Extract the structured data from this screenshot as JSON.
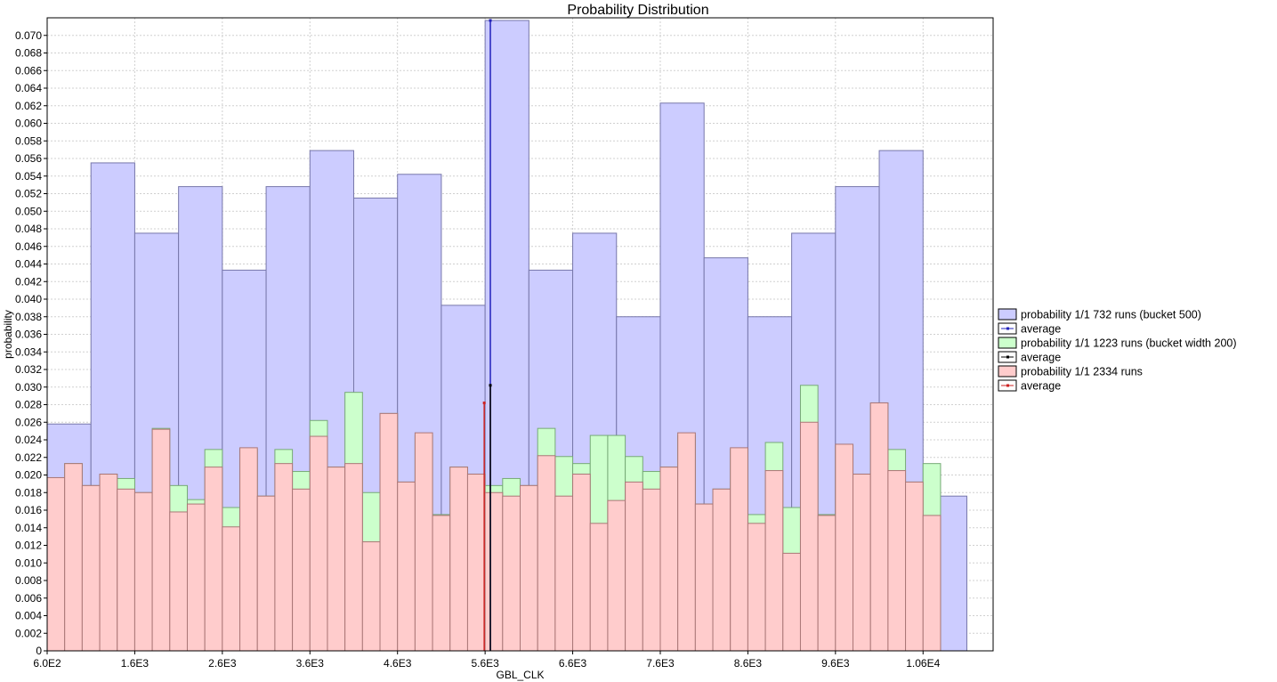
{
  "chart_data": {
    "type": "bar",
    "title": "Probability Distribution",
    "xlabel": "GBL_CLK",
    "ylabel": "probability",
    "xlim": [
      600,
      11400
    ],
    "ylim": [
      0,
      0.072
    ],
    "x_ticks": [
      600,
      1600,
      2600,
      3600,
      4600,
      5600,
      6600,
      7600,
      8600,
      9600,
      10600
    ],
    "x_tick_labels": [
      "6.0E2",
      "1.6E3",
      "2.6E3",
      "3.6E3",
      "4.6E3",
      "5.6E3",
      "6.6E3",
      "7.6E3",
      "8.6E3",
      "9.6E3",
      "1.06E4"
    ],
    "y_ticks": [
      0,
      0.002,
      0.004,
      0.006,
      0.008,
      0.01,
      0.012,
      0.014,
      0.016,
      0.018,
      0.02,
      0.022,
      0.024,
      0.026,
      0.028,
      0.03,
      0.032,
      0.034,
      0.036,
      0.038,
      0.04,
      0.042,
      0.044,
      0.046,
      0.048,
      0.05,
      0.052,
      0.054,
      0.056,
      0.058,
      0.06,
      0.062,
      0.064,
      0.066,
      0.068,
      0.07
    ],
    "y_tick_labels": [
      "0",
      "0.002",
      "0.004",
      "0.006",
      "0.008",
      "0.010",
      "0.012",
      "0.014",
      "0.016",
      "0.018",
      "0.020",
      "0.022",
      "0.024",
      "0.026",
      "0.028",
      "0.030",
      "0.032",
      "0.034",
      "0.036",
      "0.038",
      "0.040",
      "0.042",
      "0.044",
      "0.046",
      "0.048",
      "0.050",
      "0.052",
      "0.054",
      "0.056",
      "0.058",
      "0.060",
      "0.062",
      "0.064",
      "0.066",
      "0.068",
      "0.070"
    ],
    "grid": true,
    "legend_position": "right",
    "series": [
      {
        "name": "probability 1/1 732 runs (bucket 500)",
        "color": "#ccccff",
        "edge": "#7777aa",
        "x_start": 600,
        "bucket_width": 500,
        "values": [
          0.0258,
          0.0555,
          0.0475,
          0.0528,
          0.0433,
          0.0528,
          0.0569,
          0.0515,
          0.0542,
          0.0393,
          0.0717,
          0.0433,
          0.0475,
          0.038,
          0.0623,
          0.0447,
          0.038,
          0.0475,
          0.0528,
          0.0569,
          0.0176
        ],
        "average": 5660,
        "average_name": "average",
        "average_color": "#2222bb"
      },
      {
        "name": "probability 1/1 1223 runs (bucket width 200)",
        "color": "#ccffcc",
        "edge": "#77aa77",
        "x_start": 600,
        "bucket_width": 200,
        "values": [
          0.0196,
          0.0213,
          0.0188,
          0.0201,
          0.0196,
          0.018,
          0.0253,
          0.0188,
          0.0172,
          0.0229,
          0.0163,
          0.0229,
          0.0176,
          0.0229,
          0.0204,
          0.0262,
          0.0209,
          0.0294,
          0.018,
          0.027,
          0.0192,
          0.0245,
          0.0155,
          0.0209,
          0.0201,
          0.0188,
          0.0196,
          0.0188,
          0.0253,
          0.0221,
          0.0213,
          0.0245,
          0.0245,
          0.0221,
          0.0204,
          0.0209,
          0.0245,
          0.0167,
          0.0184,
          0.0229,
          0.0155,
          0.0237,
          0.0163,
          0.0302,
          0.0155,
          0.0233,
          0.0201,
          0.0282,
          0.0229,
          0.0192,
          0.0213
        ],
        "average": 5660,
        "average_name": "average",
        "average_color": "#000000"
      },
      {
        "name": "probability 1/1 2334 runs",
        "color": "#ffcccc",
        "edge": "#aa7777",
        "x_start": 600,
        "bucket_width": 200,
        "values": [
          0.0197,
          0.0213,
          0.0188,
          0.0201,
          0.0184,
          0.018,
          0.0252,
          0.0158,
          0.0167,
          0.0209,
          0.0141,
          0.0231,
          0.0176,
          0.0213,
          0.0184,
          0.0244,
          0.0209,
          0.0213,
          0.0124,
          0.027,
          0.0192,
          0.0248,
          0.0154,
          0.0209,
          0.0201,
          0.018,
          0.0176,
          0.0188,
          0.0222,
          0.0176,
          0.0201,
          0.0145,
          0.0171,
          0.0192,
          0.0184,
          0.0209,
          0.0248,
          0.0167,
          0.0184,
          0.0231,
          0.0145,
          0.0205,
          0.0111,
          0.026,
          0.0154,
          0.0235,
          0.0201,
          0.0282,
          0.0205,
          0.0192,
          0.0154
        ],
        "average": 5590,
        "average_name": "average",
        "average_color": "#cc2222"
      }
    ],
    "average_markers": [
      {
        "x": 5660,
        "ymax": 0.0717,
        "color": "#2222bb"
      },
      {
        "x": 5660,
        "ymax": 0.0302,
        "color": "#000000"
      },
      {
        "x": 5590,
        "ymax": 0.0282,
        "color": "#cc2222"
      }
    ]
  }
}
